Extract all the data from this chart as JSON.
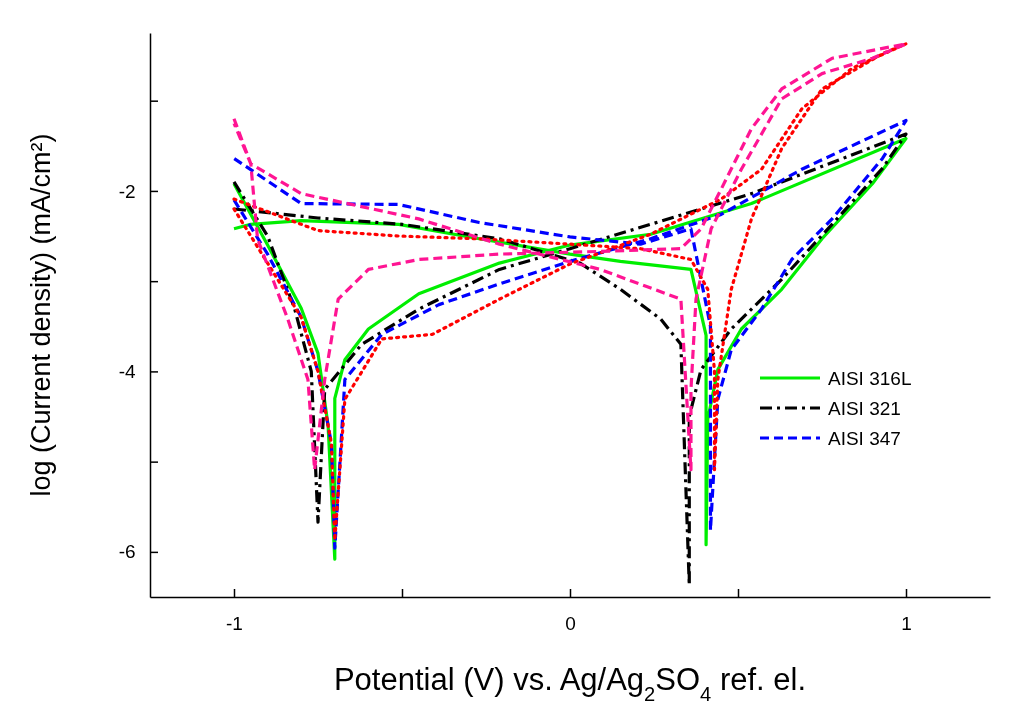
{
  "chart_data": {
    "type": "line",
    "xlabel": "Potential (V) vs. Ag/Ag$_{2}$SO$_{4}$ ref. el.",
    "ylabel": "log (Current density) (mA/cm²)",
    "xlim": [
      -1.25,
      1.25
    ],
    "ylim": [
      -6.5,
      -0.25
    ],
    "xticks": [
      -1,
      {
        "value": -0.5,
        "label": null
      },
      0,
      {
        "value": 0.5,
        "label": null
      },
      1
    ],
    "yticks": [
      {
        "value": -1,
        "label": null
      },
      -2,
      {
        "value": -3,
        "label": null
      },
      -4,
      {
        "value": -5,
        "label": null
      },
      -6
    ],
    "legend": "bottom right",
    "grid": false,
    "marker": "none",
    "series": [
      {
        "name": "AISI 316L",
        "color": "#00ee00",
        "line_style": "solid",
        "x": [
          -1,
          -0.9,
          -0.8,
          -0.75,
          -0.72,
          -0.7,
          -0.7,
          -0.67,
          -0.6,
          -0.45,
          -0.21,
          0,
          0.24,
          0.54,
          1,
          0.9,
          0.75,
          0.63,
          0.51,
          0.44,
          0.41,
          0.405,
          0.405,
          0.36,
          0.15,
          0,
          -0.27,
          -0.51,
          -0.8,
          -0.95,
          -1
        ],
        "values": [
          -1.92,
          -2.6,
          -3.3,
          -3.8,
          -4.6,
          -6.08,
          -4.3,
          -3.87,
          -3.53,
          -3.14,
          -2.8,
          -2.6,
          -2.48,
          -2.14,
          -1.42,
          -1.92,
          -2.53,
          -3.09,
          -3.53,
          -3.98,
          -4.53,
          -5.92,
          -3.6,
          -2.87,
          -2.78,
          -2.7,
          -2.53,
          -2.37,
          -2.33,
          -2.37,
          -2.42
        ]
      },
      {
        "name": "AISI 321",
        "color": "#000000",
        "line_style": "dashdot",
        "x": [
          -1,
          -0.9,
          -0.82,
          -0.77,
          -0.75,
          -0.73,
          -0.62,
          -0.45,
          -0.21,
          0,
          0.24,
          0.54,
          1,
          0.93,
          0.78,
          0.63,
          0.48,
          0.39,
          0.355,
          0.355,
          0.33,
          0.27,
          0.15,
          0.03,
          -0.21,
          -0.5,
          -0.75,
          -1
        ],
        "values": [
          -1.9,
          -2.5,
          -3.3,
          -4.0,
          -5.67,
          -4.2,
          -3.7,
          -3.31,
          -2.87,
          -2.64,
          -2.37,
          -2.03,
          -1.37,
          -1.75,
          -2.37,
          -2.98,
          -3.53,
          -3.98,
          -4.5,
          -6.37,
          -3.7,
          -3.42,
          -3.09,
          -2.8,
          -2.53,
          -2.37,
          -2.3,
          -2.2
        ]
      },
      {
        "name": "AISI 347",
        "color": "#0000ff",
        "line_style": "dashed",
        "x": [
          -1,
          -0.9,
          -0.8,
          -0.75,
          -0.71,
          -0.7,
          -0.67,
          -0.56,
          -0.39,
          -0.21,
          0,
          0.24,
          0.45,
          0.69,
          1,
          0.93,
          0.78,
          0.66,
          0.57,
          0.48,
          0.44,
          0.418,
          0.418,
          0.39,
          0.36,
          0.21,
          0,
          -0.27,
          -0.51,
          -0.8,
          -1
        ],
        "values": [
          -2.1,
          -2.7,
          -3.4,
          -4.0,
          -4.8,
          -5.96,
          -4.09,
          -3.59,
          -3.26,
          -3.03,
          -2.78,
          -2.53,
          -2.26,
          -1.76,
          -1.22,
          -1.64,
          -2.31,
          -2.76,
          -3.31,
          -3.76,
          -4.31,
          -5.76,
          -3.5,
          -2.98,
          -2.42,
          -2.59,
          -2.51,
          -2.35,
          -2.15,
          -2.14,
          -1.64
        ]
      },
      {
        "color": "#ff0000",
        "line_style": "dotted",
        "x": [
          -1,
          -0.9,
          -0.8,
          -0.75,
          -0.71,
          -0.7,
          -0.67,
          -0.56,
          -0.41,
          -0.21,
          0,
          0.24,
          0.45,
          0.57,
          0.69,
          0.84,
          1,
          0.93,
          0.75,
          0.63,
          0.54,
          0.48,
          0.44,
          0.43,
          0.43,
          0.41,
          0.36,
          0.21,
          0,
          -0.27,
          -0.51,
          -0.75,
          -1
        ],
        "values": [
          -2.2,
          -2.8,
          -3.4,
          -4.0,
          -4.8,
          -5.87,
          -4.31,
          -3.64,
          -3.59,
          -3.2,
          -2.81,
          -2.48,
          -2.09,
          -1.76,
          -1.09,
          -0.64,
          -0.37,
          -0.48,
          -0.87,
          -1.53,
          -2.31,
          -3.09,
          -4.09,
          -5.09,
          -4.0,
          -3.09,
          -2.76,
          -2.64,
          -2.59,
          -2.53,
          -2.5,
          -2.44,
          -2.09
        ]
      },
      {
        "color": "#ff1493",
        "line_style": "dashed",
        "x": [
          -1,
          -0.95,
          -0.93,
          -0.84,
          -0.78,
          -0.76,
          -0.73,
          -0.69,
          -0.6,
          -0.45,
          -0.21,
          0.09,
          0.33,
          0.39,
          0.45,
          0.54,
          0.63,
          0.78,
          1,
          0.9,
          0.75,
          0.63,
          0.51,
          0.42,
          0.375,
          0.36,
          0.36,
          0.33,
          0.09,
          -0.21,
          -0.45,
          -0.8,
          -0.95,
          -1
        ],
        "values": [
          -1.2,
          -1.7,
          -2.53,
          -3.42,
          -4.09,
          -5.09,
          -4.09,
          -3.2,
          -2.87,
          -2.76,
          -2.7,
          -2.67,
          -2.64,
          -2.42,
          -1.98,
          -1.31,
          -0.87,
          -0.53,
          -0.37,
          -0.53,
          -0.7,
          -0.98,
          -1.76,
          -2.42,
          -3.2,
          -4.2,
          -5.09,
          -3.2,
          -2.87,
          -2.59,
          -2.31,
          -2.03,
          -1.7,
          -1.25
        ]
      }
    ]
  }
}
